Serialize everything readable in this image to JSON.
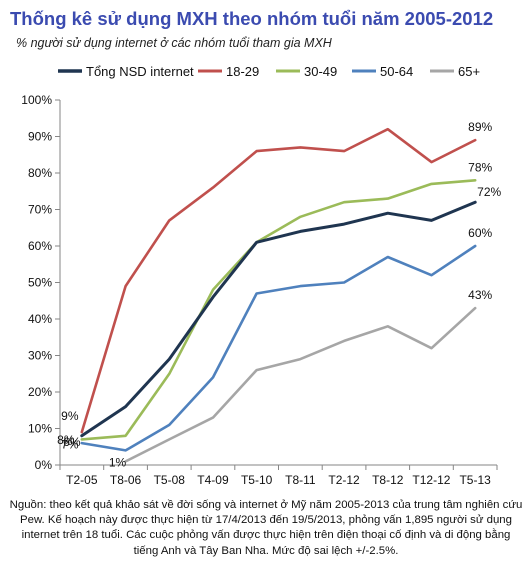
{
  "title": "Thống kê sử dụng MXH theo nhóm tuổi năm 2005-2012",
  "subtitle": "% người sử dụng internet ở các nhóm tuổi tham gia MXH",
  "source_note": "Nguồn: theo kết quả khảo sát về đời sống và internet ở Mỹ năm 2005-2013 của trung tâm nghiên cứu Pew. Kế hoạch này được thực hiện từ 17/4/2013 đến 19/5/2013, phỏng vấn 1,895 người sử dụng internet trên 18 tuổi. Các cuộc phỏng vấn được thực hiện trên điện thoại cố định và di động bằng tiếng Anh và Tây Ban Nha. Mức độ sai lệch +/-2.5%.",
  "chart_data": {
    "type": "line",
    "title": "Thống kê sử dụng MXH theo nhóm tuổi năm 2005-2012",
    "subtitle": "% người sử dụng internet ở các nhóm tuổi tham gia MXH",
    "xlabel": "",
    "ylabel": "",
    "categories": [
      "T2-05",
      "T8-06",
      "T5-08",
      "T4-09",
      "T5-10",
      "T8-11",
      "T2-12",
      "T8-12",
      "T12-12",
      "T5-13"
    ],
    "ylim": [
      0,
      100
    ],
    "yticks": [
      0,
      10,
      20,
      30,
      40,
      50,
      60,
      70,
      80,
      90,
      100
    ],
    "ytick_suffix": "%",
    "grid": false,
    "legend_position": "top",
    "series": [
      {
        "name": "Tổng NSD internet",
        "color": "#1f3550",
        "width": 3,
        "values": [
          8,
          16,
          29,
          46,
          61,
          64,
          66,
          69,
          67,
          72
        ],
        "labels": {
          "0": "8%",
          "9": "72%"
        }
      },
      {
        "name": "18-29",
        "color": "#c0504d",
        "width": 2.6,
        "values": [
          9,
          49,
          67,
          76,
          86,
          87,
          86,
          92,
          83,
          89
        ],
        "labels": {
          "0": "9%",
          "9": "89%"
        }
      },
      {
        "name": "30-49",
        "color": "#9bbb59",
        "width": 2.6,
        "values": [
          7,
          8,
          25,
          48,
          61,
          68,
          72,
          73,
          77,
          78
        ],
        "labels": {
          "0": "7%",
          "9": "78%"
        }
      },
      {
        "name": "50-64",
        "color": "#4f81bd",
        "width": 2.6,
        "values": [
          6,
          4,
          11,
          24,
          47,
          49,
          50,
          57,
          52,
          60
        ],
        "labels": {
          "0": "6%",
          "9": "60%"
        }
      },
      {
        "name": "65+",
        "color": "#a6a6a6",
        "width": 2.6,
        "values": [
          null,
          1,
          7,
          13,
          26,
          29,
          34,
          38,
          32,
          43
        ],
        "labels": {
          "1": "1%",
          "9": "43%"
        }
      }
    ]
  }
}
